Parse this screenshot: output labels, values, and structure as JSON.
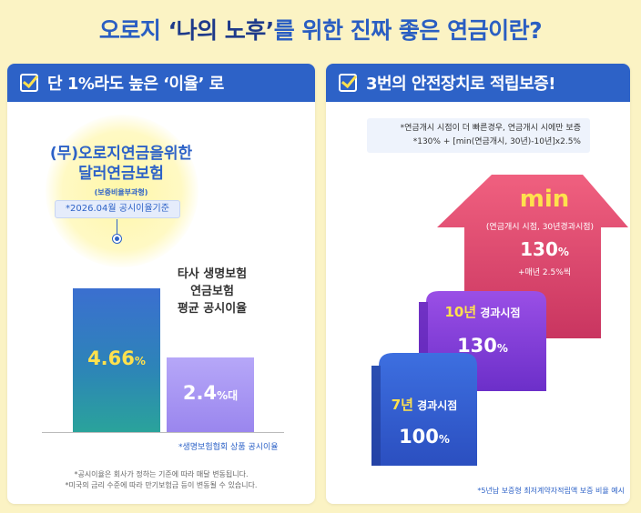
{
  "title": {
    "pre": "오로지 ",
    "emph": "‘나의 노후’",
    "post": "를 위한 진짜 좋은 연금이란?"
  },
  "left": {
    "header": "단 1%라도 높은 ‘이율’ 로",
    "product_name_line1": "(무)오로지연금을위한",
    "product_name_line2": "달러연금보험",
    "product_sub": "(보증비율부과형)",
    "basis": "*2026.04월 공시이율기준",
    "other_label_line1": "타사 생명보험",
    "other_label_line2": "연금보험",
    "other_label_line3": "평균 공시이율",
    "source": "*생명보험협회 상품 공시이율",
    "note1": "*공시이율은 회사가 정하는 기준에 따라 매달 변동됩니다.",
    "note2": "*미국의 금리 수준에 따라 만기보험금 등이 변동될 수 있습니다."
  },
  "chart_data": {
    "type": "bar",
    "categories": [
      "(무)오로지연금을위한 달러연금보험",
      "타사 생명보험 연금보험 평균 공시이율"
    ],
    "values": [
      4.66,
      2.4
    ],
    "value_labels": [
      {
        "num": "4.66",
        "unit": "%"
      },
      {
        "num": "2.4",
        "unit": "%대"
      }
    ],
    "ylim": [
      0,
      5.0
    ],
    "colors": [
      "#2d6fc7",
      "#a08ef0"
    ]
  },
  "right": {
    "header": "3번의 안전장치로 적립보증!",
    "formula_line1": "*연금개시 시점이 더 빠른경우, 연금개시 시에만 보증",
    "formula_line2": "*130% + [min(연금개시, 30년)-10년]x2.5%",
    "steps": [
      {
        "title_num": "7년",
        "title_rest": " 경과시점",
        "value": "100",
        "unit": "%"
      },
      {
        "title_num": "10년",
        "title_rest": " 경과시점",
        "value": "130",
        "unit": "%"
      },
      {
        "title_num": "min",
        "sub": "(연금개시 시점, 30년경과시점)",
        "value": "130",
        "unit": "%",
        "extra": "+매년 2.5%씩"
      }
    ],
    "source": "*5년납 보증형 최저계약자적립액 보증 비율 예시"
  },
  "colors": {
    "primary": "#2d62c7",
    "yellow": "#ffe14d",
    "pink": "#e0436a",
    "purple": "#7d3cd8",
    "background": "#fbf3c4"
  }
}
